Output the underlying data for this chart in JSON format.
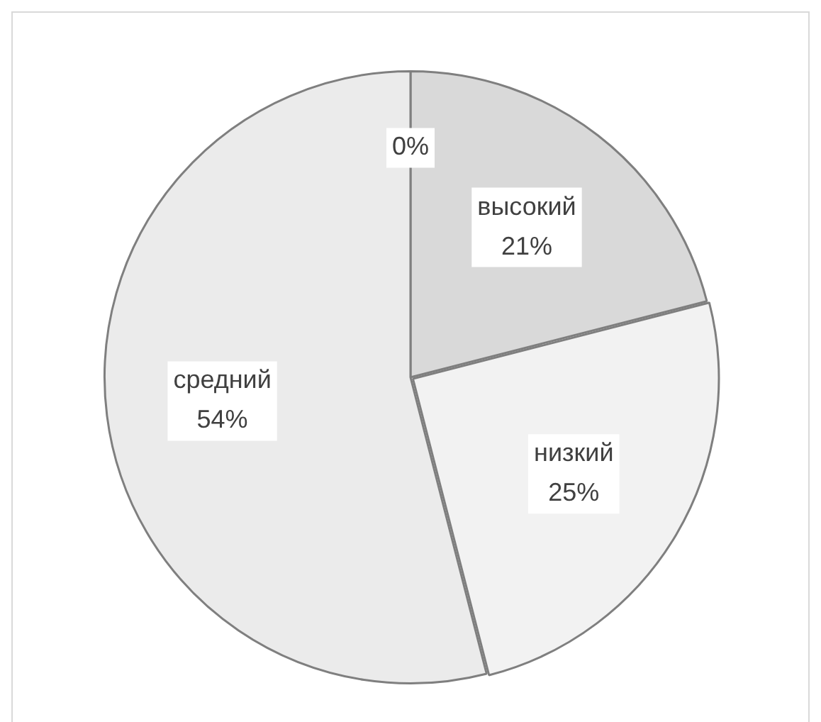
{
  "chart_data": {
    "type": "pie",
    "categories": [
      null,
      "высокий",
      "низкий",
      "средний"
    ],
    "values": [
      0,
      21,
      25,
      54
    ],
    "colors": [
      "#d9d9d9",
      "#d9d9d9",
      "#f2f2f2",
      "#ebebeb"
    ],
    "value_labels": [
      "0%",
      "21%",
      "25%",
      "54%"
    ],
    "legend": false
  }
}
